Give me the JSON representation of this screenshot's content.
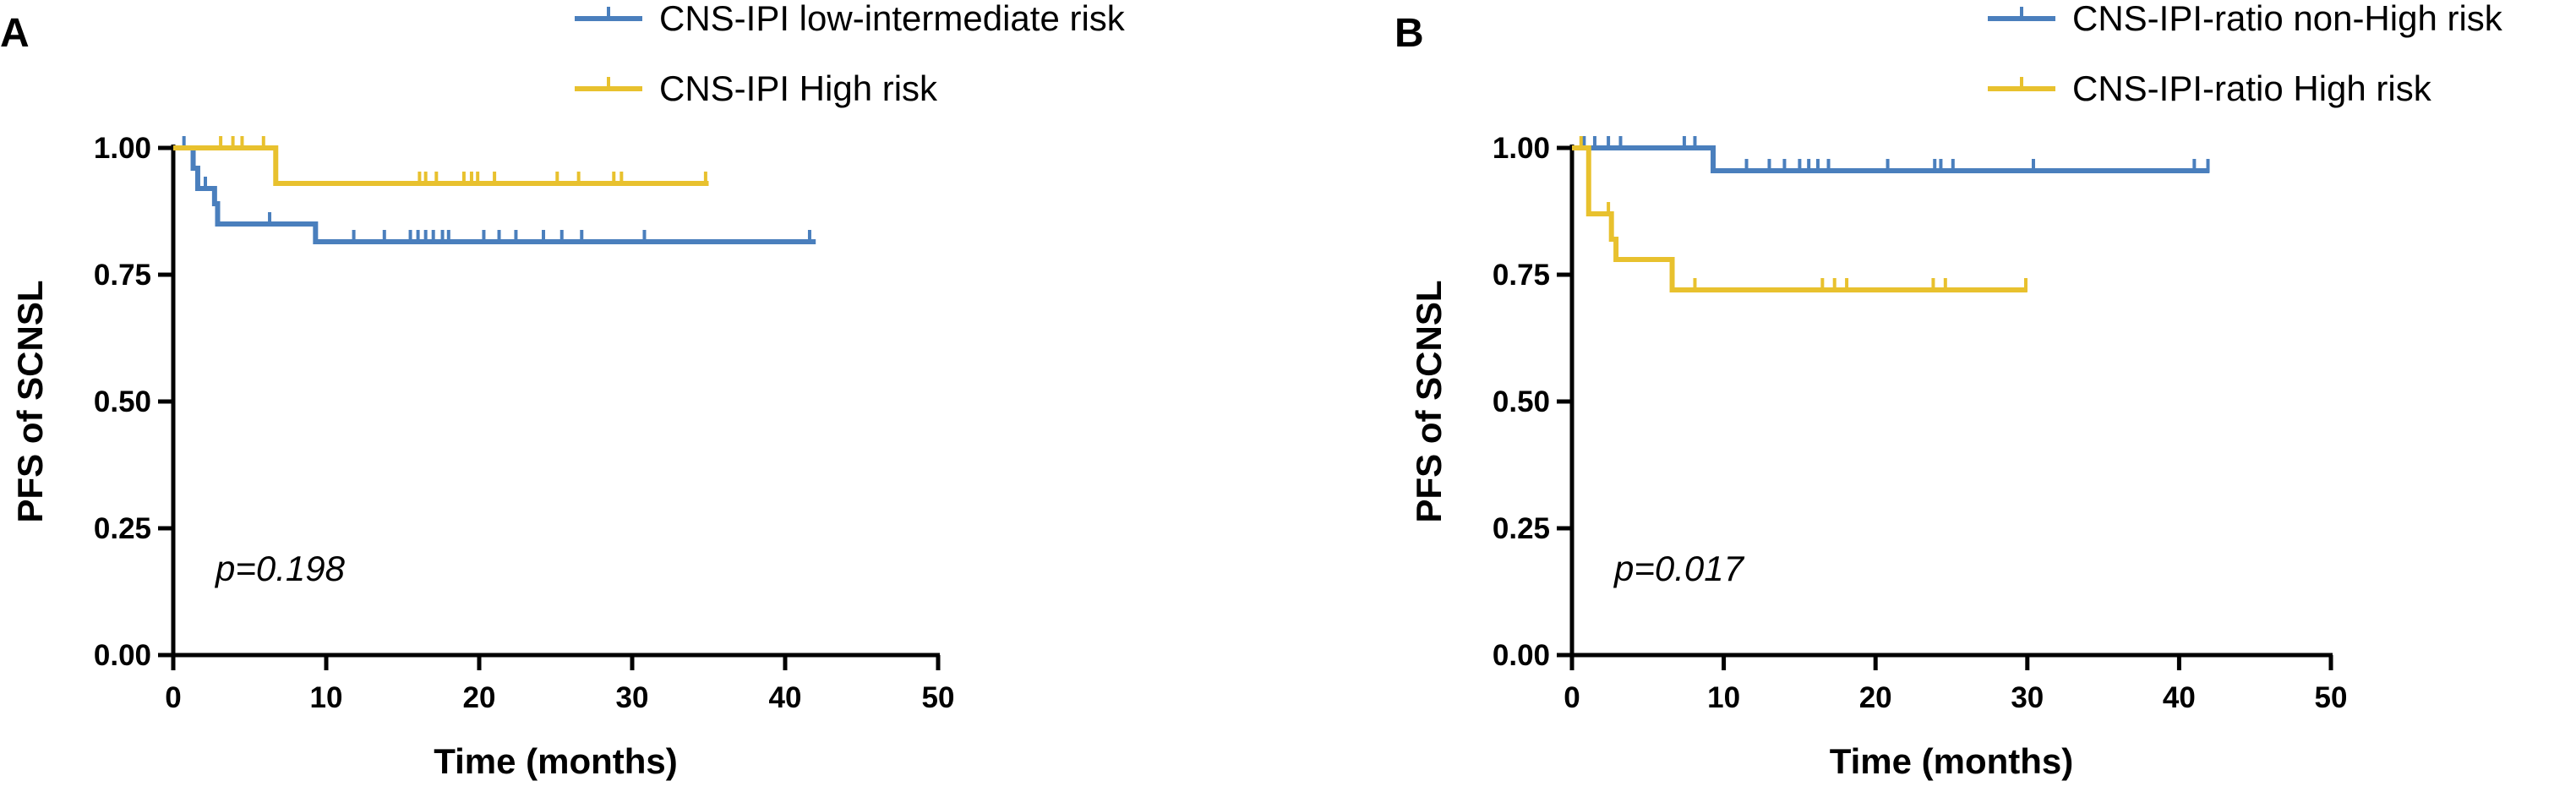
{
  "chart_data": [
    {
      "panel": "A",
      "type": "line",
      "subtype": "kaplan-meier",
      "xlabel": "Time (months)",
      "ylabel": "PFS of SCNSL",
      "xlim": [
        0,
        50
      ],
      "ylim": [
        0,
        1
      ],
      "xticks": [
        "0",
        "10",
        "20",
        "30",
        "40",
        "50"
      ],
      "yticks": [
        "0.00",
        "0.25",
        "0.50",
        "0.75",
        "1.00"
      ],
      "legend_position": "top-center",
      "annotation": "p=0.198",
      "series": [
        {
          "name": "CNS-IPI low-intermediate risk",
          "color": "#4a7fbd",
          "steps": [
            [
              0,
              1.0
            ],
            [
              1.3,
              0.96
            ],
            [
              1.6,
              0.92
            ],
            [
              2.7,
              0.89
            ],
            [
              2.9,
              0.85
            ],
            [
              9.3,
              0.815
            ],
            [
              42,
              0.815
            ]
          ],
          "censors": [
            [
              0.7,
              1.0
            ],
            [
              2.1,
              0.92
            ],
            [
              6.3,
              0.85
            ],
            [
              11.8,
              0.815
            ],
            [
              13.8,
              0.815
            ],
            [
              15.5,
              0.815
            ],
            [
              16.0,
              0.815
            ],
            [
              16.5,
              0.815
            ],
            [
              17.0,
              0.815
            ],
            [
              17.6,
              0.815
            ],
            [
              18.0,
              0.815
            ],
            [
              20.3,
              0.815
            ],
            [
              21.3,
              0.815
            ],
            [
              22.4,
              0.815
            ],
            [
              24.2,
              0.815
            ],
            [
              25.4,
              0.815
            ],
            [
              26.7,
              0.815
            ],
            [
              30.8,
              0.815
            ],
            [
              41.6,
              0.815
            ]
          ]
        },
        {
          "name": "CNS-IPI High risk",
          "color": "#e8c12e",
          "steps": [
            [
              0,
              1.0
            ],
            [
              6.7,
              0.93
            ],
            [
              35,
              0.93
            ]
          ],
          "censors": [
            [
              3.1,
              1.0
            ],
            [
              3.9,
              1.0
            ],
            [
              4.5,
              1.0
            ],
            [
              5.9,
              1.0
            ],
            [
              16.1,
              0.93
            ],
            [
              16.5,
              0.93
            ],
            [
              17.2,
              0.93
            ],
            [
              19.0,
              0.93
            ],
            [
              19.5,
              0.93
            ],
            [
              19.9,
              0.93
            ],
            [
              21.0,
              0.93
            ],
            [
              25.1,
              0.93
            ],
            [
              26.5,
              0.93
            ],
            [
              28.8,
              0.93
            ],
            [
              29.3,
              0.93
            ],
            [
              34.8,
              0.93
            ]
          ]
        }
      ]
    },
    {
      "panel": "B",
      "type": "line",
      "subtype": "kaplan-meier",
      "xlabel": "Time (months)",
      "ylabel": "PFS of SCNSL",
      "xlim": [
        0,
        50
      ],
      "ylim": [
        0,
        1
      ],
      "xticks": [
        "0",
        "10",
        "20",
        "30",
        "40",
        "50"
      ],
      "yticks": [
        "0.00",
        "0.25",
        "0.50",
        "0.75",
        "1.00"
      ],
      "legend_position": "top-right",
      "annotation": "p=0.017",
      "series": [
        {
          "name": "CNS-IPI-ratio non-High risk",
          "color": "#4a7fbd",
          "steps": [
            [
              0,
              1.0
            ],
            [
              9.3,
              0.955
            ],
            [
              42,
              0.955
            ]
          ],
          "censors": [
            [
              0.8,
              1.0
            ],
            [
              1.5,
              1.0
            ],
            [
              2.4,
              1.0
            ],
            [
              3.2,
              1.0
            ],
            [
              7.4,
              1.0
            ],
            [
              8.1,
              1.0
            ],
            [
              11.5,
              0.955
            ],
            [
              13.0,
              0.955
            ],
            [
              14.0,
              0.955
            ],
            [
              15.0,
              0.955
            ],
            [
              15.6,
              0.955
            ],
            [
              16.2,
              0.955
            ],
            [
              16.9,
              0.955
            ],
            [
              20.8,
              0.955
            ],
            [
              23.9,
              0.955
            ],
            [
              24.3,
              0.955
            ],
            [
              25.1,
              0.955
            ],
            [
              30.4,
              0.955
            ],
            [
              41.0,
              0.955
            ],
            [
              41.9,
              0.955
            ]
          ]
        },
        {
          "name": "CNS-IPI-ratio High risk",
          "color": "#e8c12e",
          "steps": [
            [
              0,
              1.0
            ],
            [
              1.1,
              0.87
            ],
            [
              2.6,
              0.82
            ],
            [
              2.9,
              0.78
            ],
            [
              6.6,
              0.72
            ],
            [
              30,
              0.72
            ]
          ],
          "censors": [
            [
              0.6,
              1.0
            ],
            [
              2.4,
              0.87
            ],
            [
              8.1,
              0.72
            ],
            [
              16.5,
              0.72
            ],
            [
              17.3,
              0.72
            ],
            [
              18.1,
              0.72
            ],
            [
              23.8,
              0.72
            ],
            [
              24.6,
              0.72
            ],
            [
              29.9,
              0.72
            ]
          ]
        }
      ]
    }
  ]
}
